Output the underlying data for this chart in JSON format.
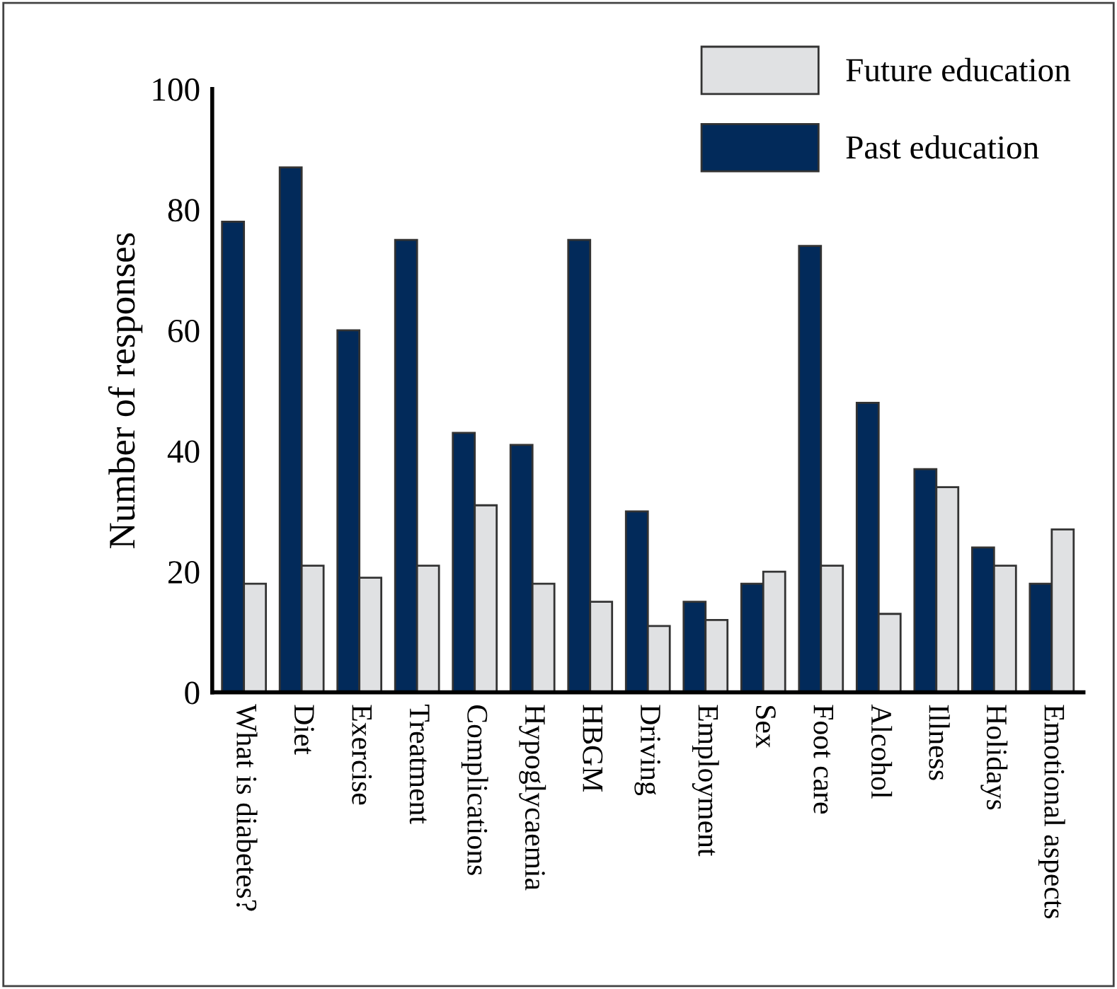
{
  "chart_data": {
    "type": "bar",
    "ylabel": "Number of responses",
    "categories": [
      "What is diabetes?",
      "Diet",
      "Exercise",
      "Treatment",
      "Complications",
      "Hypoglycaemia",
      "HBGM",
      "Driving",
      "Employment",
      "Sex",
      "Foot care",
      "Alcohol",
      "Illness",
      "Holidays",
      "Emotional aspects"
    ],
    "series": [
      {
        "name": "Past education",
        "color": "#022a5a",
        "values": [
          78,
          87,
          60,
          75,
          43,
          41,
          75,
          30,
          15,
          18,
          74,
          48,
          37,
          24,
          18
        ]
      },
      {
        "name": "Future education",
        "color": "#e0e1e3",
        "values": [
          18,
          21,
          19,
          21,
          31,
          18,
          15,
          11,
          12,
          20,
          21,
          13,
          34,
          21,
          27
        ]
      }
    ],
    "ylim": [
      0,
      100
    ],
    "yticks": [
      0,
      20,
      40,
      60,
      80,
      100
    ],
    "grid": false,
    "legend": "top right"
  }
}
